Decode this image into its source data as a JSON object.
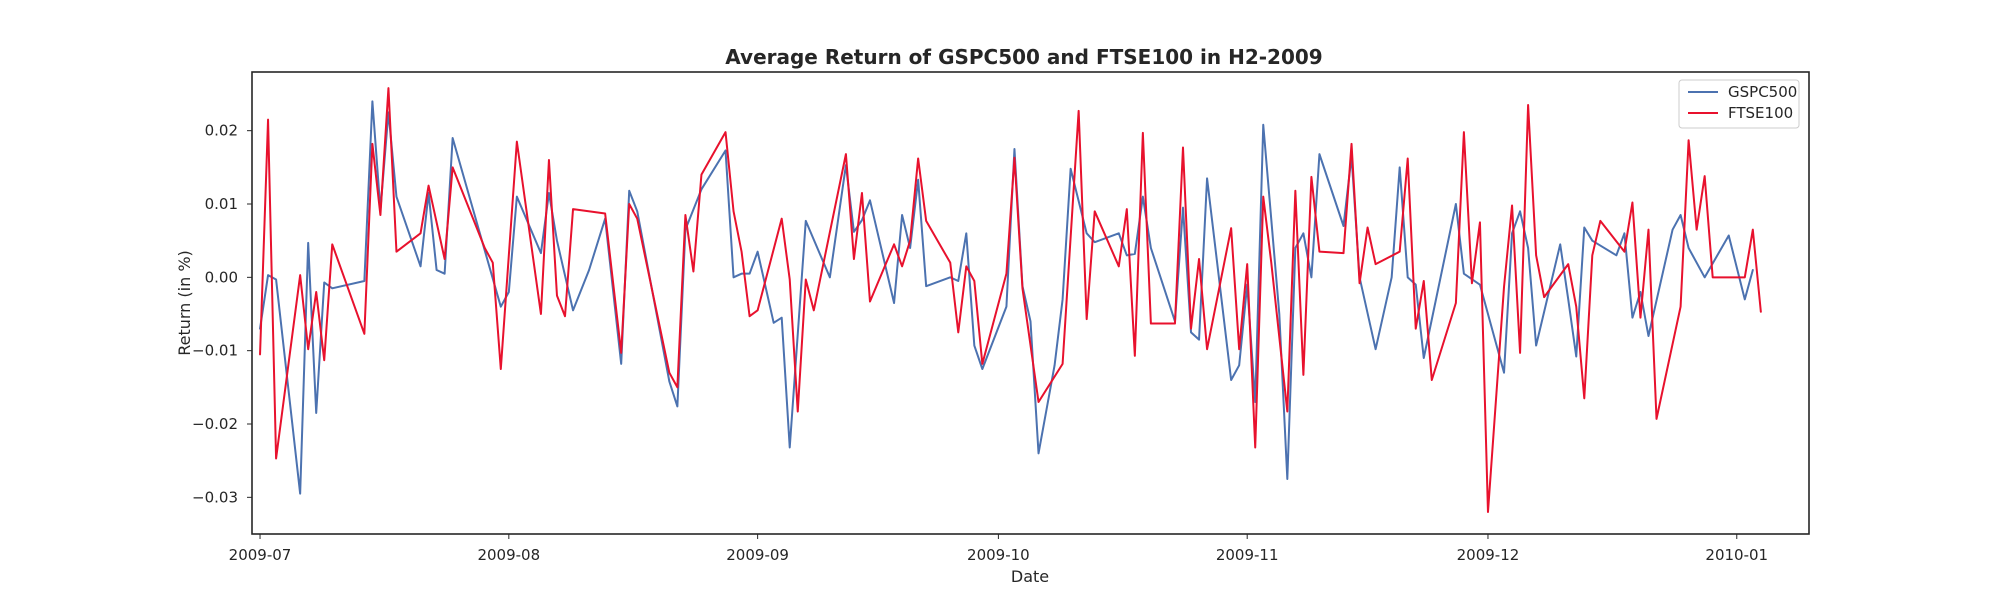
{
  "chart_data": {
    "type": "line",
    "title": "Average Return of GSPC500 and FTSE100 in H2-2009",
    "xlabel": "Date",
    "ylabel": "Return (in %)",
    "x_range": [
      "2009-06-30",
      "2010-01-10"
    ],
    "ylim": [
      -0.035,
      0.028
    ],
    "x_ticks": [
      {
        "date": "2009-07-01",
        "label": "2009-07"
      },
      {
        "date": "2009-08-01",
        "label": "2009-08"
      },
      {
        "date": "2009-09-01",
        "label": "2009-09"
      },
      {
        "date": "2009-10-01",
        "label": "2009-10"
      },
      {
        "date": "2009-11-01",
        "label": "2009-11"
      },
      {
        "date": "2009-12-01",
        "label": "2009-12"
      },
      {
        "date": "2010-01-01",
        "label": "2010-01"
      }
    ],
    "y_ticks": [
      {
        "value": 0.02,
        "label": "0.02"
      },
      {
        "value": 0.01,
        "label": "0.01"
      },
      {
        "value": 0.0,
        "label": "0.00"
      },
      {
        "value": -0.01,
        "label": "−0.01"
      },
      {
        "value": -0.02,
        "label": "−0.02"
      },
      {
        "value": -0.03,
        "label": "−0.03"
      }
    ],
    "grid": false,
    "legend_position": "upper right",
    "series": [
      {
        "name": "GSPC500",
        "color": "#4c72b0",
        "points": [
          [
            "2009-07-01",
            -0.007
          ],
          [
            "2009-07-02",
            0.0003
          ],
          [
            "2009-07-03",
            -0.0003
          ],
          [
            "2009-07-06",
            -0.0295
          ],
          [
            "2009-07-07",
            0.0047
          ],
          [
            "2009-07-08",
            -0.0185
          ],
          [
            "2009-07-09",
            -0.0007
          ],
          [
            "2009-07-10",
            -0.0015
          ],
          [
            "2009-07-14",
            -0.0005
          ],
          [
            "2009-07-15",
            0.024
          ],
          [
            "2009-07-16",
            0.0092
          ],
          [
            "2009-07-17",
            0.0225
          ],
          [
            "2009-07-18",
            0.011
          ],
          [
            "2009-07-21",
            0.0015
          ],
          [
            "2009-07-22",
            0.0115
          ],
          [
            "2009-07-23",
            0.001
          ],
          [
            "2009-07-24",
            0.0005
          ],
          [
            "2009-07-25",
            0.019
          ],
          [
            "2009-07-31",
            -0.004
          ],
          [
            "2009-08-01",
            -0.002
          ],
          [
            "2009-08-02",
            0.011
          ],
          [
            "2009-08-05",
            0.0033
          ],
          [
            "2009-08-06",
            0.0115
          ],
          [
            "2009-08-07",
            0.005
          ],
          [
            "2009-08-09",
            -0.0045
          ],
          [
            "2009-08-11",
            0.001
          ],
          [
            "2009-08-13",
            0.008
          ],
          [
            "2009-08-15",
            -0.0118
          ],
          [
            "2009-08-16",
            0.0118
          ],
          [
            "2009-08-17",
            0.009
          ],
          [
            "2009-08-21",
            -0.0142
          ],
          [
            "2009-08-22",
            -0.0176
          ],
          [
            "2009-08-23",
            0.0065
          ],
          [
            "2009-08-25",
            0.012
          ],
          [
            "2009-08-28",
            0.0173
          ],
          [
            "2009-08-29",
            0.0
          ],
          [
            "2009-08-30",
            0.0005
          ],
          [
            "2009-08-31",
            0.0005
          ],
          [
            "2009-09-01",
            0.0035
          ],
          [
            "2009-09-03",
            -0.0062
          ],
          [
            "2009-09-04",
            -0.0055
          ],
          [
            "2009-09-05",
            -0.0232
          ],
          [
            "2009-09-07",
            0.0077
          ],
          [
            "2009-09-10",
            0.0
          ],
          [
            "2009-09-12",
            0.0153
          ],
          [
            "2009-09-13",
            0.0062
          ],
          [
            "2009-09-14",
            0.0078
          ],
          [
            "2009-09-15",
            0.0105
          ],
          [
            "2009-09-18",
            -0.0035
          ],
          [
            "2009-09-19",
            0.0085
          ],
          [
            "2009-09-20",
            0.004
          ],
          [
            "2009-09-21",
            0.0133
          ],
          [
            "2009-09-22",
            -0.0012
          ],
          [
            "2009-09-25",
            0.0
          ],
          [
            "2009-09-26",
            -0.0005
          ],
          [
            "2009-09-27",
            0.006
          ],
          [
            "2009-09-28",
            -0.0093
          ],
          [
            "2009-09-29",
            -0.0125
          ],
          [
            "2009-10-02",
            -0.004
          ],
          [
            "2009-10-03",
            0.0175
          ],
          [
            "2009-10-04",
            -0.0012
          ],
          [
            "2009-10-05",
            -0.006
          ],
          [
            "2009-10-06",
            -0.024
          ],
          [
            "2009-10-08",
            -0.012
          ],
          [
            "2009-10-09",
            -0.003
          ],
          [
            "2009-10-10",
            0.0148
          ],
          [
            "2009-10-12",
            0.006
          ],
          [
            "2009-10-13",
            0.0048
          ],
          [
            "2009-10-16",
            0.006
          ],
          [
            "2009-10-17",
            0.003
          ],
          [
            "2009-10-18",
            0.0032
          ],
          [
            "2009-10-19",
            0.011
          ],
          [
            "2009-10-20",
            0.004
          ],
          [
            "2009-10-23",
            -0.006
          ],
          [
            "2009-10-24",
            0.0095
          ],
          [
            "2009-10-25",
            -0.0075
          ],
          [
            "2009-10-26",
            -0.0085
          ],
          [
            "2009-10-27",
            0.0135
          ],
          [
            "2009-10-30",
            -0.014
          ],
          [
            "2009-10-31",
            -0.012
          ],
          [
            "2009-11-01",
            -0.001
          ],
          [
            "2009-11-02",
            -0.017
          ],
          [
            "2009-11-03",
            0.0208
          ],
          [
            "2009-11-05",
            -0.005
          ],
          [
            "2009-11-06",
            -0.0275
          ],
          [
            "2009-11-07",
            0.004
          ],
          [
            "2009-11-08",
            0.006
          ],
          [
            "2009-11-09",
            0.0
          ],
          [
            "2009-11-10",
            0.0168
          ],
          [
            "2009-11-13",
            0.007
          ],
          [
            "2009-11-14",
            0.0165
          ],
          [
            "2009-11-15",
            0.0
          ],
          [
            "2009-11-17",
            -0.0098
          ],
          [
            "2009-11-19",
            0.0
          ],
          [
            "2009-11-20",
            0.015
          ],
          [
            "2009-11-21",
            0.0
          ],
          [
            "2009-11-22",
            -0.001
          ],
          [
            "2009-11-23",
            -0.011
          ],
          [
            "2009-11-27",
            0.01
          ],
          [
            "2009-11-28",
            0.0005
          ],
          [
            "2009-11-30",
            -0.001
          ],
          [
            "2009-12-03",
            -0.013
          ],
          [
            "2009-12-04",
            0.006
          ],
          [
            "2009-12-05",
            0.009
          ],
          [
            "2009-12-06",
            0.004
          ],
          [
            "2009-12-07",
            -0.0093
          ],
          [
            "2009-12-10",
            0.0045
          ],
          [
            "2009-12-11",
            -0.003
          ],
          [
            "2009-12-12",
            -0.0108
          ],
          [
            "2009-12-13",
            0.0068
          ],
          [
            "2009-12-14",
            0.005
          ],
          [
            "2009-12-17",
            0.003
          ],
          [
            "2009-12-18",
            0.006
          ],
          [
            "2009-12-19",
            -0.0055
          ],
          [
            "2009-12-20",
            -0.002
          ],
          [
            "2009-12-21",
            -0.008
          ],
          [
            "2009-12-24",
            0.0065
          ],
          [
            "2009-12-25",
            0.0085
          ],
          [
            "2009-12-26",
            0.004
          ],
          [
            "2009-12-28",
            0.0
          ],
          [
            "2009-12-31",
            0.0057
          ],
          [
            "2010-01-02",
            -0.003
          ],
          [
            "2010-01-03",
            0.001
          ]
        ]
      },
      {
        "name": "FTSE100",
        "color": "#e8112d",
        "points": [
          [
            "2009-07-01",
            -0.0105
          ],
          [
            "2009-07-02",
            0.0215
          ],
          [
            "2009-07-03",
            -0.0247
          ],
          [
            "2009-07-06",
            0.0003
          ],
          [
            "2009-07-07",
            -0.0098
          ],
          [
            "2009-07-08",
            -0.002
          ],
          [
            "2009-07-09",
            -0.0113
          ],
          [
            "2009-07-10",
            0.0045
          ],
          [
            "2009-07-14",
            -0.0077
          ],
          [
            "2009-07-15",
            0.0182
          ],
          [
            "2009-07-16",
            0.0085
          ],
          [
            "2009-07-17",
            0.0258
          ],
          [
            "2009-07-18",
            0.0035
          ],
          [
            "2009-07-21",
            0.006
          ],
          [
            "2009-07-22",
            0.0125
          ],
          [
            "2009-07-24",
            0.0025
          ],
          [
            "2009-07-25",
            0.015
          ],
          [
            "2009-07-29",
            0.004
          ],
          [
            "2009-07-30",
            0.002
          ],
          [
            "2009-07-31",
            -0.0125
          ],
          [
            "2009-08-02",
            0.0185
          ],
          [
            "2009-08-05",
            -0.005
          ],
          [
            "2009-08-06",
            0.016
          ],
          [
            "2009-08-07",
            -0.0025
          ],
          [
            "2009-08-08",
            -0.0053
          ],
          [
            "2009-08-09",
            0.0093
          ],
          [
            "2009-08-13",
            0.0087
          ],
          [
            "2009-08-15",
            -0.0103
          ],
          [
            "2009-08-16",
            0.01
          ],
          [
            "2009-08-17",
            0.008
          ],
          [
            "2009-08-21",
            -0.013
          ],
          [
            "2009-08-22",
            -0.015
          ],
          [
            "2009-08-23",
            0.0085
          ],
          [
            "2009-08-24",
            0.0008
          ],
          [
            "2009-08-25",
            0.014
          ],
          [
            "2009-08-28",
            0.0198
          ],
          [
            "2009-08-29",
            0.009
          ],
          [
            "2009-08-30",
            0.0035
          ],
          [
            "2009-08-31",
            -0.0053
          ],
          [
            "2009-09-01",
            -0.0045
          ],
          [
            "2009-09-04",
            0.008
          ],
          [
            "2009-09-05",
            -0.0003
          ],
          [
            "2009-09-06",
            -0.0183
          ],
          [
            "2009-09-07",
            -0.0003
          ],
          [
            "2009-09-08",
            -0.0045
          ],
          [
            "2009-09-12",
            0.0168
          ],
          [
            "2009-09-13",
            0.0025
          ],
          [
            "2009-09-14",
            0.0115
          ],
          [
            "2009-09-15",
            -0.0033
          ],
          [
            "2009-09-18",
            0.0045
          ],
          [
            "2009-09-19",
            0.0015
          ],
          [
            "2009-09-20",
            0.005
          ],
          [
            "2009-09-21",
            0.0162
          ],
          [
            "2009-09-22",
            0.0077
          ],
          [
            "2009-09-25",
            0.002
          ],
          [
            "2009-09-26",
            -0.0075
          ],
          [
            "2009-09-27",
            0.0015
          ],
          [
            "2009-09-28",
            -0.0005
          ],
          [
            "2009-09-29",
            -0.0118
          ],
          [
            "2009-10-02",
            0.0005
          ],
          [
            "2009-10-03",
            0.0163
          ],
          [
            "2009-10-04",
            -0.0015
          ],
          [
            "2009-10-06",
            -0.017
          ],
          [
            "2009-10-09",
            -0.0118
          ],
          [
            "2009-10-11",
            0.0227
          ],
          [
            "2009-10-12",
            -0.0057
          ],
          [
            "2009-10-13",
            0.009
          ],
          [
            "2009-10-16",
            0.0015
          ],
          [
            "2009-10-17",
            0.0093
          ],
          [
            "2009-10-18",
            -0.0107
          ],
          [
            "2009-10-19",
            0.0197
          ],
          [
            "2009-10-20",
            -0.0063
          ],
          [
            "2009-10-23",
            -0.0063
          ],
          [
            "2009-10-24",
            0.0177
          ],
          [
            "2009-10-25",
            -0.007
          ],
          [
            "2009-10-26",
            0.0025
          ],
          [
            "2009-10-27",
            -0.0098
          ],
          [
            "2009-10-30",
            0.0067
          ],
          [
            "2009-10-31",
            -0.0098
          ],
          [
            "2009-11-01",
            0.0018
          ],
          [
            "2009-11-02",
            -0.0232
          ],
          [
            "2009-11-03",
            0.011
          ],
          [
            "2009-11-04",
            0.002
          ],
          [
            "2009-11-06",
            -0.0183
          ],
          [
            "2009-11-07",
            0.0118
          ],
          [
            "2009-11-08",
            -0.0133
          ],
          [
            "2009-11-09",
            0.0137
          ],
          [
            "2009-11-10",
            0.0035
          ],
          [
            "2009-11-13",
            0.0033
          ],
          [
            "2009-11-14",
            0.0182
          ],
          [
            "2009-11-15",
            -0.0008
          ],
          [
            "2009-11-16",
            0.0068
          ],
          [
            "2009-11-17",
            0.0018
          ],
          [
            "2009-11-20",
            0.0035
          ],
          [
            "2009-11-21",
            0.0162
          ],
          [
            "2009-11-22",
            -0.007
          ],
          [
            "2009-11-23",
            -0.0005
          ],
          [
            "2009-11-24",
            -0.014
          ],
          [
            "2009-11-27",
            -0.0035
          ],
          [
            "2009-11-28",
            0.0198
          ],
          [
            "2009-11-29",
            -0.0008
          ],
          [
            "2009-11-30",
            0.0075
          ],
          [
            "2009-12-01",
            -0.032
          ],
          [
            "2009-12-03",
            -0.0013
          ],
          [
            "2009-12-04",
            0.0098
          ],
          [
            "2009-12-05",
            -0.0103
          ],
          [
            "2009-12-06",
            0.0235
          ],
          [
            "2009-12-07",
            0.003
          ],
          [
            "2009-12-08",
            -0.0027
          ],
          [
            "2009-12-11",
            0.0018
          ],
          [
            "2009-12-12",
            -0.004
          ],
          [
            "2009-12-13",
            -0.0165
          ],
          [
            "2009-12-14",
            0.003
          ],
          [
            "2009-12-15",
            0.0077
          ],
          [
            "2009-12-18",
            0.0035
          ],
          [
            "2009-12-19",
            0.0102
          ],
          [
            "2009-12-20",
            -0.0055
          ],
          [
            "2009-12-21",
            0.0065
          ],
          [
            "2009-12-22",
            -0.0193
          ],
          [
            "2009-12-25",
            -0.004
          ],
          [
            "2009-12-26",
            0.0187
          ],
          [
            "2009-12-27",
            0.0065
          ],
          [
            "2009-12-28",
            0.0138
          ],
          [
            "2009-12-29",
            0.0
          ],
          [
            "2010-01-01",
            0.0
          ],
          [
            "2010-01-02",
            0.0
          ],
          [
            "2010-01-03",
            0.0065
          ],
          [
            "2010-01-04",
            -0.0047
          ]
        ]
      }
    ]
  }
}
